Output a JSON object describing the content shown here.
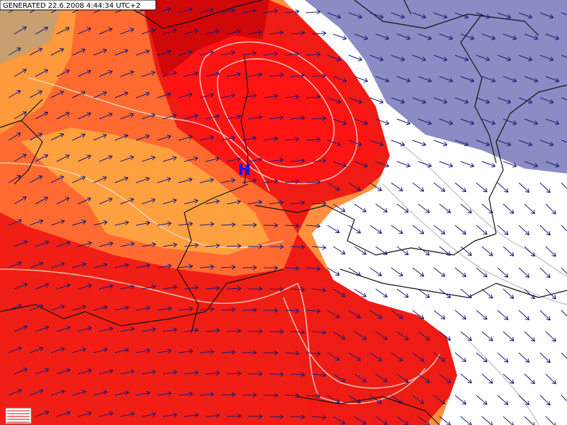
{
  "header": {
    "generated": "GENERATED 22.6.2008 4:44:34 UTC+2"
  },
  "map": {
    "pressure_label": "H"
  }
}
